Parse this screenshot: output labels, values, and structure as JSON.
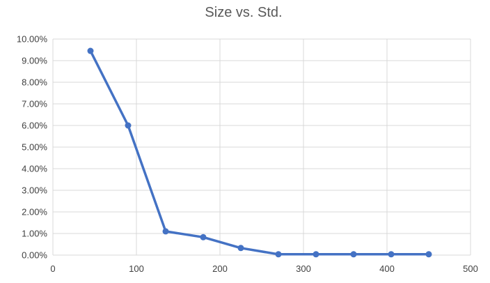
{
  "chart_data": {
    "type": "scatter",
    "title": "Size vs. Std.",
    "xlabel": "",
    "ylabel": "",
    "xlim": [
      0,
      500
    ],
    "ylim": [
      0,
      0.1
    ],
    "x_ticks": [
      0,
      100,
      200,
      300,
      400,
      500
    ],
    "x_tick_labels": [
      "0",
      "100",
      "200",
      "300",
      "400",
      "500"
    ],
    "y_ticks": [
      0,
      0.01,
      0.02,
      0.03,
      0.04,
      0.05,
      0.06,
      0.07,
      0.08,
      0.09,
      0.1
    ],
    "y_tick_labels": [
      "0.00%",
      "1.00%",
      "2.00%",
      "3.00%",
      "4.00%",
      "5.00%",
      "6.00%",
      "7.00%",
      "8.00%",
      "9.00%",
      "10.00%"
    ],
    "grid": true,
    "legend": "none",
    "colors": {
      "series": "#4472c4",
      "grid": "#d9d9d9",
      "title": "#595959",
      "tick": "#404040"
    },
    "series": [
      {
        "x": [
          45,
          90,
          135,
          180,
          225,
          270,
          315,
          360,
          405,
          450
        ],
        "y": [
          0.0945,
          0.06,
          0.011,
          0.0083,
          0.0033,
          0.0004,
          0.0004,
          0.0004,
          0.0004,
          0.0004
        ]
      }
    ]
  }
}
